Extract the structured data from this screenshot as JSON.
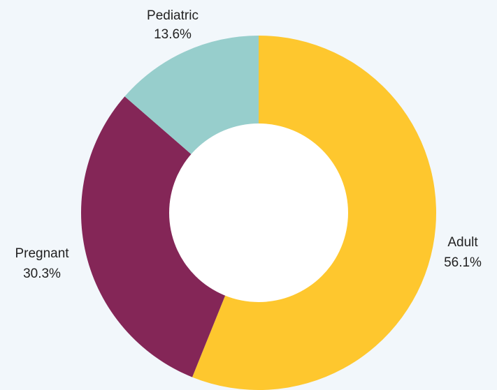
{
  "chart_data": {
    "type": "pie",
    "variant": "donut",
    "title": "",
    "slices": [
      {
        "label": "Adult",
        "percent_label": "56.1%",
        "value": 56.1,
        "color": "#fec72e"
      },
      {
        "label": "Pregnant",
        "percent_label": "30.3%",
        "value": 30.3,
        "color": "#842657"
      },
      {
        "label": "Pediatric",
        "percent_label": "13.6%",
        "value": 13.6,
        "color": "#97cecc"
      }
    ],
    "start_angle_deg": 0,
    "direction": "clockwise",
    "legend": "none",
    "background_color": "#f2f7fb",
    "hole_color": "#ffffff"
  }
}
